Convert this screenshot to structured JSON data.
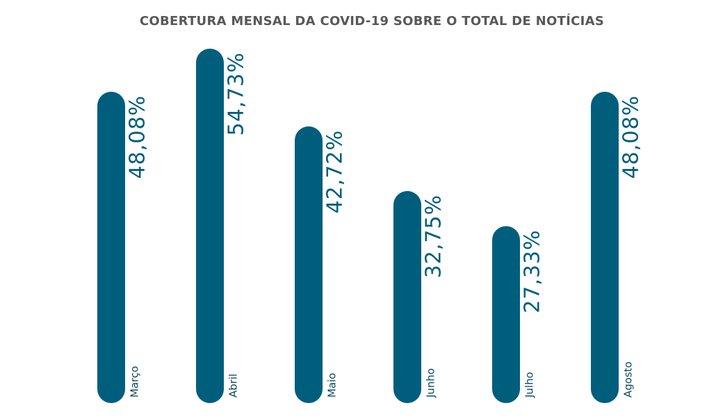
{
  "chart_data": {
    "type": "bar",
    "title": "COBERTURA MENSAL DA COVID-19 SOBRE O TOTAL DE NOTÍCIAS",
    "categories": [
      "Março",
      "Abril",
      "Maio",
      "Junho",
      "Julho",
      "Agosto"
    ],
    "values": [
      48.08,
      54.73,
      42.72,
      32.75,
      27.33,
      48.08
    ],
    "value_labels": [
      "48,08%",
      "54,73%",
      "42,72%",
      "32,75%",
      "27,33%",
      "48,08%"
    ],
    "xlabel": "",
    "ylabel": "",
    "grid": false,
    "legend": "none",
    "bar_color": "#005e7d",
    "value_label_color": "#005e7d",
    "category_label_color": "#0a4a61",
    "title_color": "#58585a"
  }
}
